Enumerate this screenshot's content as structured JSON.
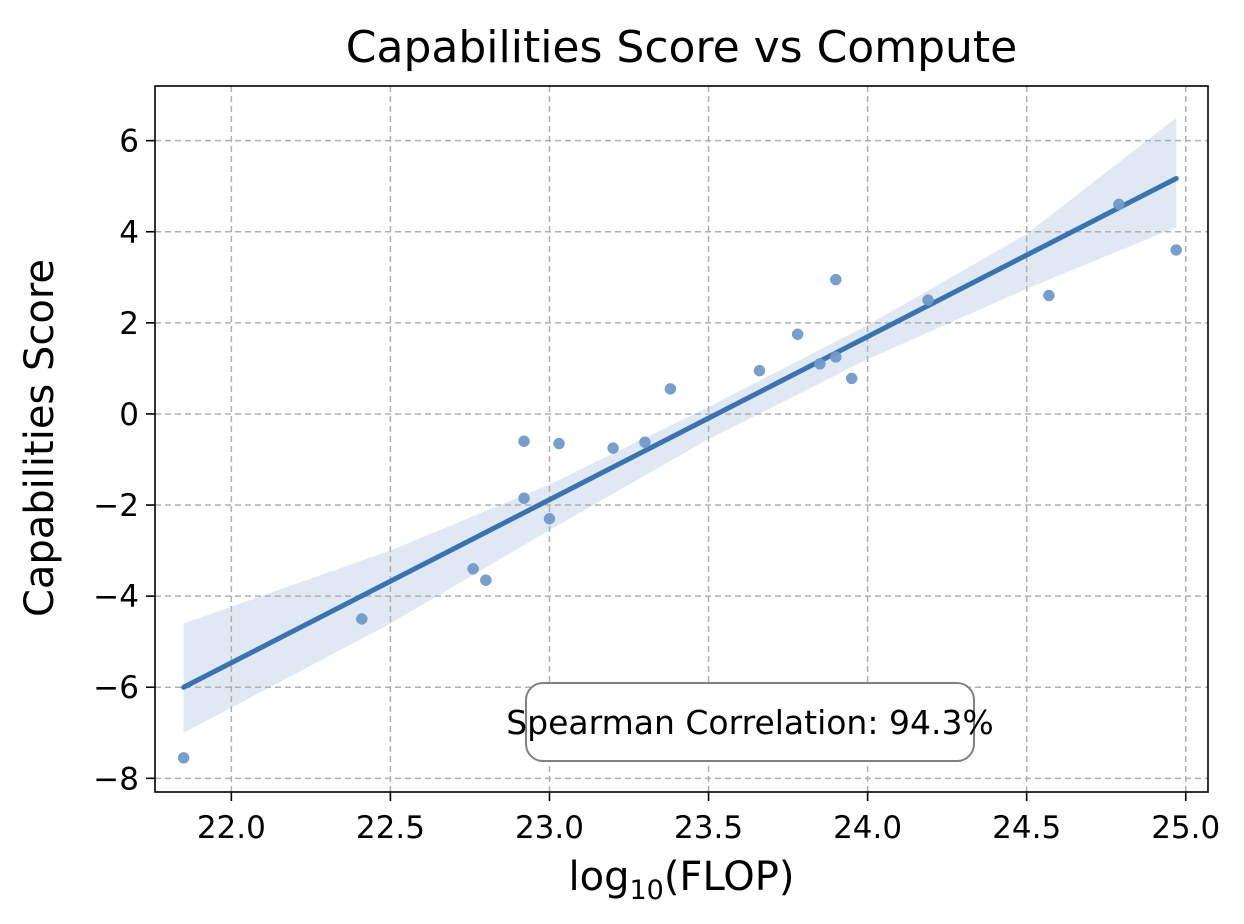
{
  "chart_data": {
    "type": "scatter",
    "title": "Capabilities Score vs Compute",
    "xlabel_prefix": "log",
    "xlabel_subscript": "10",
    "xlabel_suffix": "(FLOP)",
    "ylabel": "Capabilities Score",
    "xlim": [
      21.76,
      25.07
    ],
    "ylim": [
      -8.3,
      7.2
    ],
    "xticks": [
      22.0,
      22.5,
      23.0,
      23.5,
      24.0,
      24.5,
      25.0
    ],
    "xtick_labels": [
      "22.0",
      "22.5",
      "23.0",
      "23.5",
      "24.0",
      "24.5",
      "25.0"
    ],
    "yticks": [
      -8,
      -6,
      -4,
      -2,
      0,
      2,
      4,
      6
    ],
    "ytick_labels": [
      "−8",
      "−6",
      "−4",
      "−2",
      "0",
      "2",
      "4",
      "6"
    ],
    "grid": true,
    "grid_style": "dashed",
    "points": [
      {
        "x": 21.85,
        "y": -7.55
      },
      {
        "x": 22.41,
        "y": -4.5
      },
      {
        "x": 22.76,
        "y": -3.4
      },
      {
        "x": 22.8,
        "y": -3.65
      },
      {
        "x": 22.92,
        "y": -0.6
      },
      {
        "x": 22.92,
        "y": -1.85
      },
      {
        "x": 23.0,
        "y": -2.3
      },
      {
        "x": 23.03,
        "y": -0.65
      },
      {
        "x": 23.2,
        "y": -0.75
      },
      {
        "x": 23.3,
        "y": -0.62
      },
      {
        "x": 23.38,
        "y": 0.55
      },
      {
        "x": 23.66,
        "y": 0.95
      },
      {
        "x": 23.78,
        "y": 1.75
      },
      {
        "x": 23.85,
        "y": 1.1
      },
      {
        "x": 23.9,
        "y": 2.95
      },
      {
        "x": 23.9,
        "y": 1.25
      },
      {
        "x": 23.95,
        "y": 0.78
      },
      {
        "x": 24.19,
        "y": 2.5
      },
      {
        "x": 24.57,
        "y": 2.6
      },
      {
        "x": 24.79,
        "y": 4.6
      },
      {
        "x": 24.97,
        "y": 3.6
      }
    ],
    "regression": {
      "x": [
        21.85,
        24.97
      ],
      "y": [
        -6.0,
        5.17
      ]
    },
    "confidence_band": {
      "x": [
        21.85,
        22.5,
        23.0,
        23.5,
        24.0,
        24.5,
        24.97
      ],
      "upper": [
        -4.6,
        -3.0,
        -1.55,
        0.15,
        1.95,
        3.95,
        6.5
      ],
      "lower": [
        -7.0,
        -4.6,
        -2.55,
        -0.55,
        1.2,
        2.75,
        4.1
      ]
    },
    "annotation": "Spearman Correlation: 94.3%",
    "annotation_location": "bottom-right"
  },
  "colors": {
    "point": "#7199c7",
    "line": "#3a73ae",
    "band": "#dfe8f3",
    "grid": "#b0b0b0",
    "frame": "#000000",
    "annotation_border": "#808080"
  }
}
